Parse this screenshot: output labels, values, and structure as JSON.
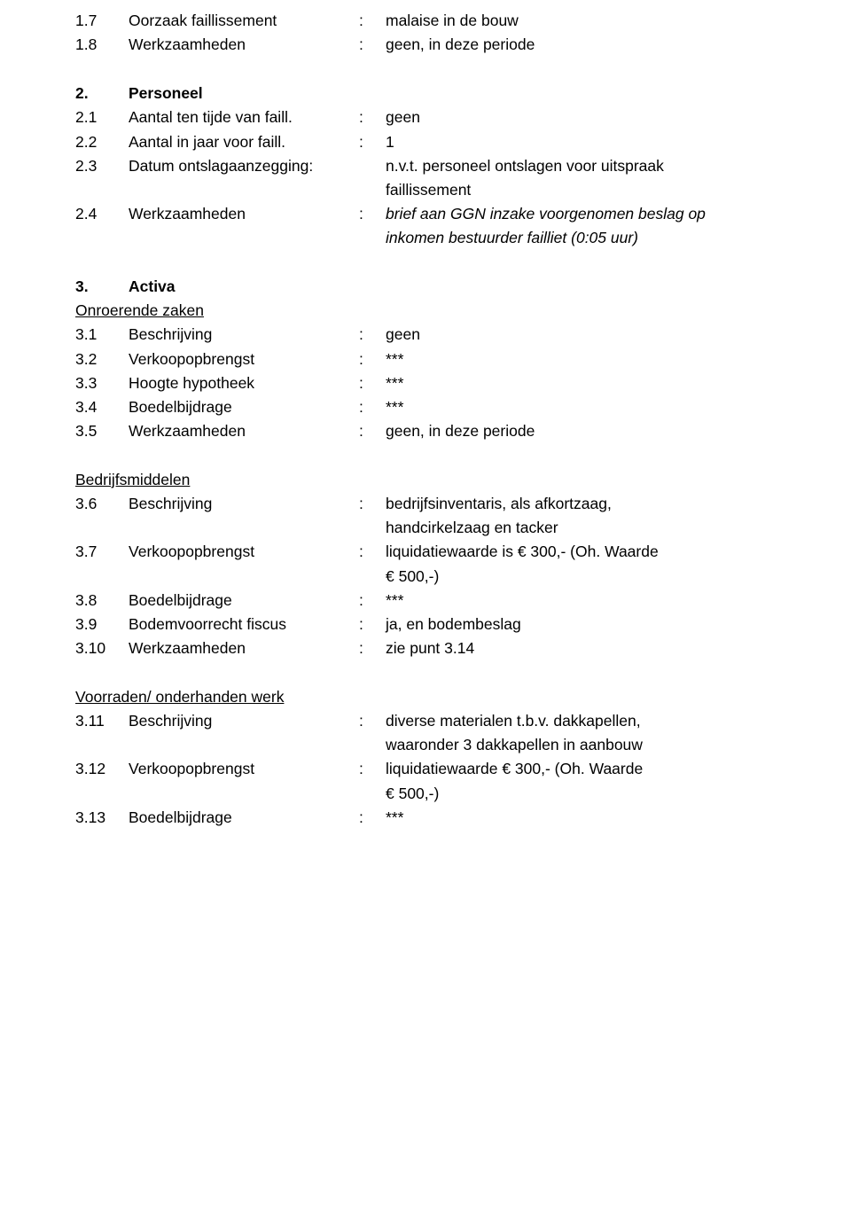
{
  "r1": {
    "num": "1.7",
    "label": "Oorzaak faillissement",
    "colon": ":",
    "val": "malaise in de bouw"
  },
  "r2": {
    "num": "1.8",
    "label": "Werkzaamheden",
    "colon": ":",
    "val": "geen, in deze periode"
  },
  "s2": {
    "num": "2.",
    "label": "Personeel"
  },
  "r3": {
    "num": "2.1",
    "label": "Aantal ten tijde van faill.",
    "colon": ":",
    "val": "geen"
  },
  "r4": {
    "num": "2.2",
    "label": "Aantal in jaar voor faill.",
    "colon": ":",
    "val": "1"
  },
  "r5": {
    "num": "2.3",
    "label": "Datum ontslagaanzegging:",
    "colon": "",
    "val": "n.v.t. personeel ontslagen voor uitspraak"
  },
  "r5c": "faillissement",
  "r6": {
    "num": "2.4",
    "label": "Werkzaamheden",
    "colon": ":",
    "val": "brief aan GGN inzake voorgenomen beslag op"
  },
  "r6c": "inkomen bestuurder failliet (0:05 uur)",
  "s3": {
    "num": "3.",
    "label": "Activa"
  },
  "sub1": "Onroerende zaken",
  "r7": {
    "num": "3.1",
    "label": "Beschrijving",
    "colon": ":",
    "val": "geen"
  },
  "r8": {
    "num": "3.2",
    "label": "Verkoopopbrengst",
    "colon": ":",
    "val": "***"
  },
  "r9": {
    "num": "3.3",
    "label": "Hoogte hypotheek",
    "colon": ":",
    "val": "***"
  },
  "r10": {
    "num": "3.4",
    "label": "Boedelbijdrage",
    "colon": ":",
    "val": "***"
  },
  "r11": {
    "num": "3.5",
    "label": "Werkzaamheden",
    "colon": ":",
    "val": "geen, in deze periode"
  },
  "sub2": "Bedrijfsmiddelen",
  "r12": {
    "num": "3.6",
    "label": "Beschrijving",
    "colon": ":",
    "val": "bedrijfsinventaris, als afkortzaag,"
  },
  "r12c": "handcirkelzaag en tacker",
  "r13": {
    "num": "3.7",
    "label": "Verkoopopbrengst",
    "colon": ":",
    "val": "liquidatiewaarde is € 300,- (Oh. Waarde"
  },
  "r13c": "€ 500,-)",
  "r14": {
    "num": "3.8",
    "label": "Boedelbijdrage",
    "colon": ":",
    "val": "***"
  },
  "r15": {
    "num": "3.9",
    "label": "Bodemvoorrecht fiscus",
    "colon": ":",
    "val": "ja, en bodembeslag"
  },
  "r16": {
    "num": "3.10",
    "label": "Werkzaamheden",
    "colon": ":",
    "val": "zie punt 3.14"
  },
  "sub3": "Voorraden/ onderhanden werk",
  "r17": {
    "num": "3.11",
    "label": "Beschrijving",
    "colon": ":",
    "val": "diverse materialen t.b.v. dakkapellen,"
  },
  "r17c": "waaronder 3 dakkapellen in aanbouw",
  "r18": {
    "num": "3.12",
    "label": "Verkoopopbrengst",
    "colon": ":",
    "val": "liquidatiewaarde € 300,- (Oh. Waarde"
  },
  "r18c": "€ 500,-)",
  "r19": {
    "num": "3.13",
    "label": "Boedelbijdrage",
    "colon": ":",
    "val": "***"
  }
}
